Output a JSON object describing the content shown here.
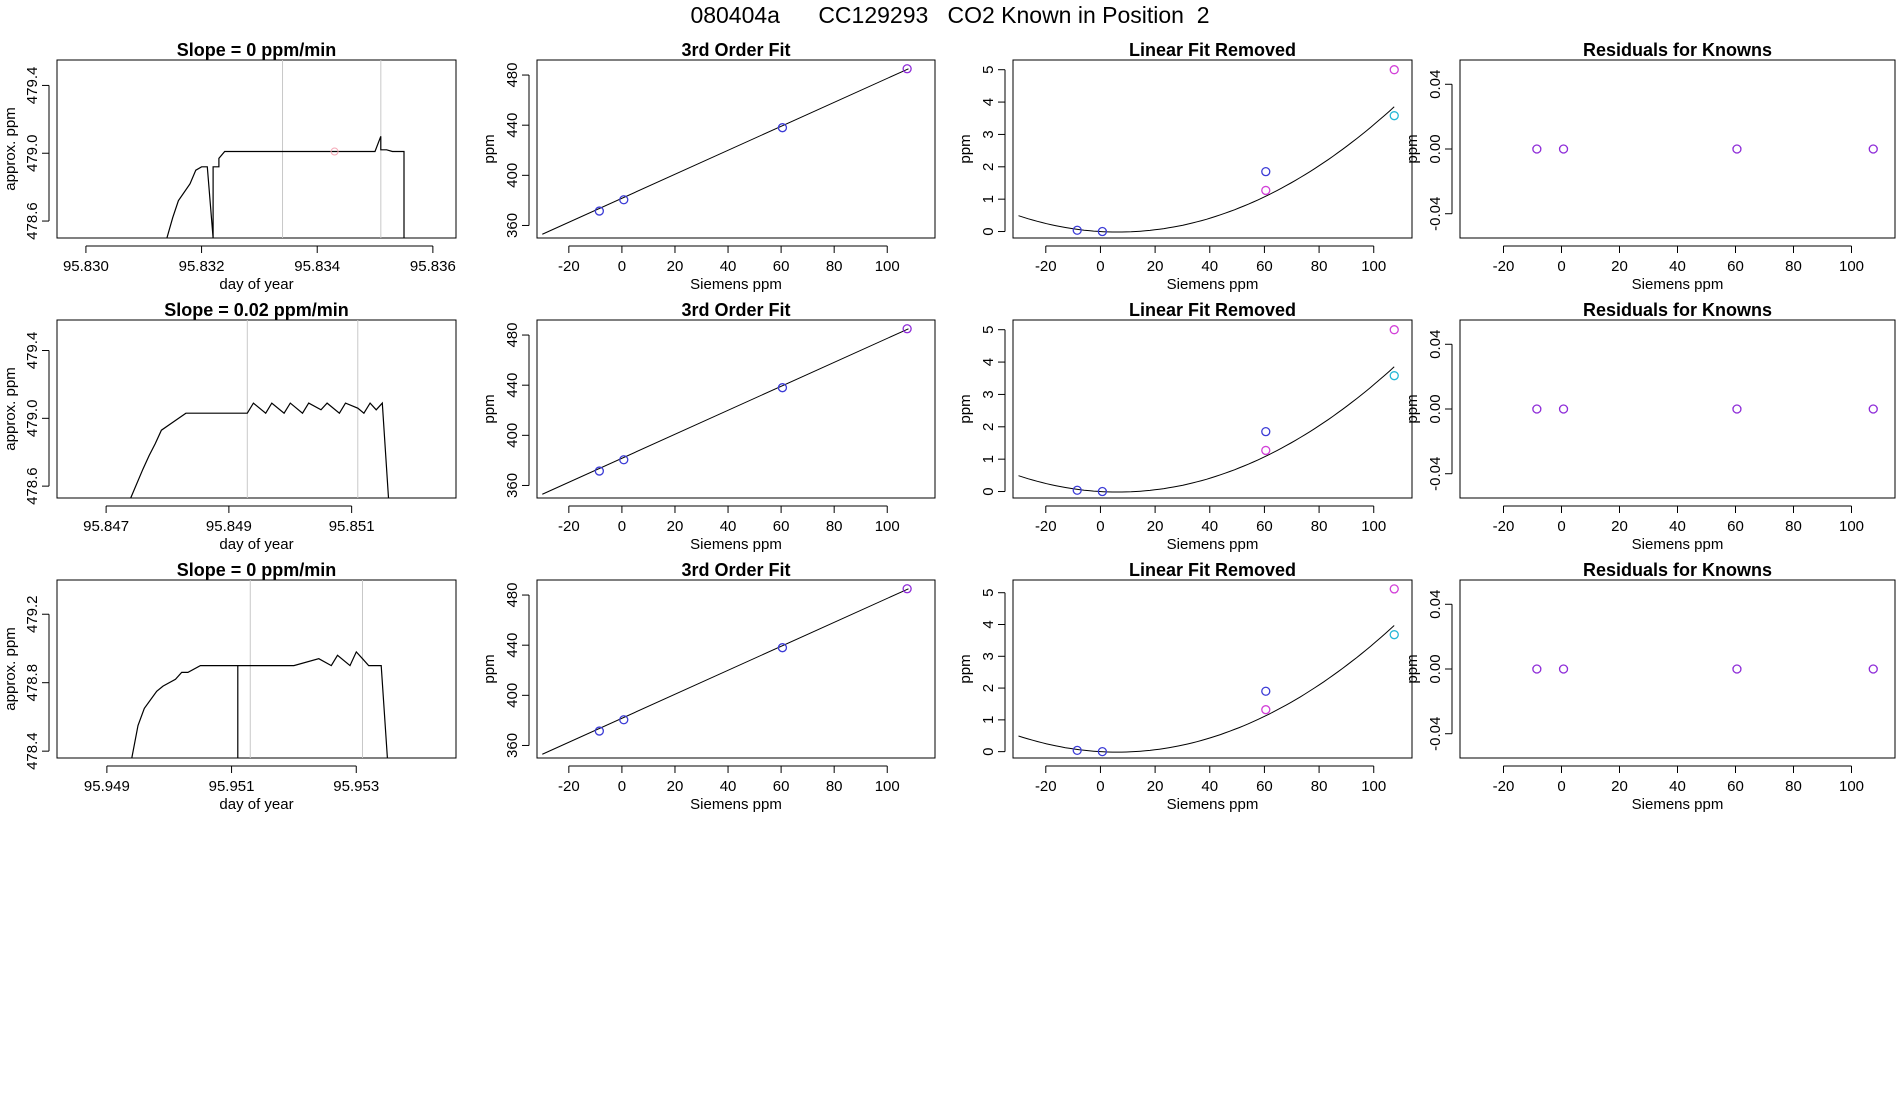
{
  "title": "080404a      CC129293   CO2 Known in Position  2",
  "colors": {
    "blue": "#3b3bd6",
    "magenta": "#d23fd8",
    "purple": "#8d2ad8",
    "cyan": "#25b7d6",
    "pink": "#f4a7b5",
    "gray": "#c8c8c8"
  },
  "chart_data": [
    {
      "type": "line",
      "panel": "timeseries",
      "row": 1,
      "title": "Slope =  0  ppm/min",
      "xlabel": "day of year",
      "ylabel": "approx. ppm",
      "xlim": [
        95.8295,
        95.8364
      ],
      "ylim": [
        478.5,
        479.55
      ],
      "xticks": [
        "95.830",
        "95.832",
        "95.834",
        "95.836"
      ],
      "xtick_values": [
        95.83,
        95.832,
        95.834,
        95.836
      ],
      "yticks": [
        "478.6",
        "479.0",
        "479.4"
      ],
      "ytick_values": [
        478.6,
        479.0,
        479.4
      ],
      "vlines": [
        95.8334,
        95.8351
      ],
      "marker": {
        "x": 95.8343,
        "y": 479.01
      },
      "x": [
        95.8314,
        95.8315,
        95.8316,
        95.8318,
        95.8319,
        95.832,
        95.8321,
        95.8322,
        95.8322,
        95.8323,
        95.8323,
        95.8323,
        95.8324,
        95.8325,
        95.8334,
        95.834,
        95.835,
        95.8351,
        95.8351,
        95.8352,
        95.8353,
        95.8354,
        95.8355,
        95.8355
      ],
      "y": [
        478.5,
        478.62,
        478.72,
        478.82,
        478.9,
        478.92,
        478.92,
        478.5,
        478.92,
        478.92,
        478.97,
        478.97,
        479.01,
        479.01,
        479.01,
        479.01,
        479.01,
        479.1,
        479.02,
        479.02,
        479.01,
        479.01,
        479.01,
        478.5
      ]
    },
    {
      "type": "scatter",
      "panel": "fit",
      "row": 1,
      "title": "3rd Order Fit",
      "xlabel": "Siemens ppm",
      "ylabel": "ppm",
      "xlim": [
        -32,
        118
      ],
      "ylim": [
        350,
        492
      ],
      "xticks": [
        "-20",
        "0",
        "20",
        "40",
        "60",
        "80",
        "100"
      ],
      "xtick_values": [
        -20,
        0,
        20,
        40,
        60,
        80,
        100
      ],
      "yticks": [
        "360",
        "400",
        "440",
        "480"
      ],
      "ytick_values": [
        360,
        400,
        440,
        480
      ],
      "line": {
        "x": [
          -30,
          108
        ],
        "y": [
          353,
          485
        ]
      },
      "points": [
        {
          "x": -8.5,
          "y": 371.5,
          "color": "blue"
        },
        {
          "x": 0.7,
          "y": 380.5,
          "color": "blue"
        },
        {
          "x": 60.5,
          "y": 438,
          "color": "blue"
        },
        {
          "x": 107.5,
          "y": 485,
          "color": "purple"
        }
      ]
    },
    {
      "type": "scatter",
      "panel": "linfit",
      "row": 1,
      "title": "Linear Fit Removed",
      "xlabel": "Siemens ppm",
      "ylabel": "ppm",
      "xlim": [
        -32,
        114
      ],
      "ylim": [
        -0.2,
        5.3
      ],
      "xticks": [
        "-20",
        "0",
        "20",
        "40",
        "60",
        "80",
        "100"
      ],
      "xtick_values": [
        -20,
        0,
        20,
        40,
        60,
        80,
        100
      ],
      "yticks": [
        "0",
        "1",
        "2",
        "3",
        "4",
        "5"
      ],
      "ytick_values": [
        0,
        1,
        2,
        3,
        4,
        5
      ],
      "curve": {
        "x0": -30,
        "x1": 107.5,
        "a": 0.000379,
        "b": -0.0049,
        "c": 0.0
      },
      "points": [
        {
          "x": -8.5,
          "y": 0.04,
          "color": "blue"
        },
        {
          "x": 0.7,
          "y": 0.0,
          "color": "blue"
        },
        {
          "x": 60.5,
          "y": 1.85,
          "color": "blue"
        },
        {
          "x": 60.5,
          "y": 1.27,
          "color": "magenta"
        },
        {
          "x": 107.5,
          "y": 5.0,
          "color": "magenta"
        },
        {
          "x": 107.5,
          "y": 3.58,
          "color": "cyan"
        }
      ]
    },
    {
      "type": "scatter",
      "panel": "resid",
      "row": 1,
      "title": "Residuals for Knowns",
      "xlabel": "Siemens ppm",
      "ylabel": "ppm",
      "xlim": [
        -35,
        115
      ],
      "ylim": [
        -0.055,
        0.055
      ],
      "xticks": [
        "-20",
        "0",
        "20",
        "40",
        "60",
        "80",
        "100"
      ],
      "xtick_values": [
        -20,
        0,
        20,
        40,
        60,
        80,
        100
      ],
      "yticks": [
        "-0.04",
        "0.00",
        "0.04"
      ],
      "ytick_values": [
        -0.04,
        0.0,
        0.04
      ],
      "points": [
        {
          "x": -8.5,
          "y": 0.0,
          "color": "purple"
        },
        {
          "x": 0.7,
          "y": 0.0,
          "color": "purple"
        },
        {
          "x": 60.5,
          "y": 0.0,
          "color": "purple"
        },
        {
          "x": 107.5,
          "y": 0.0,
          "color": "purple"
        }
      ]
    },
    {
      "type": "line",
      "panel": "timeseries",
      "row": 2,
      "title": "Slope =  0.02  ppm/min",
      "xlabel": "day of year",
      "ylabel": "approx. ppm",
      "xlim": [
        95.8462,
        95.8527
      ],
      "ylim": [
        478.53,
        479.58
      ],
      "xticks": [
        "95.847",
        "95.849",
        "95.851"
      ],
      "xtick_values": [
        95.847,
        95.849,
        95.851
      ],
      "yticks": [
        "478.6",
        "479.0",
        "479.4"
      ],
      "ytick_values": [
        478.6,
        479.0,
        479.4
      ],
      "vlines": [
        95.8493,
        95.8511
      ],
      "x": [
        95.8474,
        95.8476,
        95.8477,
        95.8478,
        95.8479,
        95.8481,
        95.8483,
        95.8493,
        95.8494,
        95.8496,
        95.8497,
        95.8499,
        95.85,
        95.8502,
        95.8503,
        95.8505,
        95.8506,
        95.8508,
        95.8509,
        95.8511,
        95.8512,
        95.8513,
        95.8514,
        95.8515,
        95.8516
      ],
      "y": [
        478.53,
        478.7,
        478.78,
        478.85,
        478.93,
        478.98,
        479.03,
        479.03,
        479.09,
        479.03,
        479.09,
        479.03,
        479.09,
        479.03,
        479.09,
        479.05,
        479.09,
        479.03,
        479.09,
        479.06,
        479.03,
        479.09,
        479.05,
        479.09,
        478.53
      ]
    },
    {
      "type": "scatter",
      "panel": "fit",
      "row": 2,
      "title": "3rd Order Fit",
      "xlabel": "Siemens ppm",
      "ylabel": "ppm",
      "xlim": [
        -32,
        118
      ],
      "ylim": [
        350,
        492
      ],
      "xticks": [
        "-20",
        "0",
        "20",
        "40",
        "60",
        "80",
        "100"
      ],
      "xtick_values": [
        -20,
        0,
        20,
        40,
        60,
        80,
        100
      ],
      "yticks": [
        "360",
        "400",
        "440",
        "480"
      ],
      "ytick_values": [
        360,
        400,
        440,
        480
      ],
      "line": {
        "x": [
          -30,
          108
        ],
        "y": [
          353,
          485
        ]
      },
      "points": [
        {
          "x": -8.5,
          "y": 371.5,
          "color": "blue"
        },
        {
          "x": 0.7,
          "y": 380.5,
          "color": "blue"
        },
        {
          "x": 60.5,
          "y": 438,
          "color": "blue"
        },
        {
          "x": 107.5,
          "y": 485,
          "color": "purple"
        }
      ]
    },
    {
      "type": "scatter",
      "panel": "linfit",
      "row": 2,
      "title": "Linear Fit Removed",
      "xlabel": "Siemens ppm",
      "ylabel": "ppm",
      "xlim": [
        -32,
        114
      ],
      "ylim": [
        -0.2,
        5.3
      ],
      "xticks": [
        "-20",
        "0",
        "20",
        "40",
        "60",
        "80",
        "100"
      ],
      "xtick_values": [
        -20,
        0,
        20,
        40,
        60,
        80,
        100
      ],
      "yticks": [
        "0",
        "1",
        "2",
        "3",
        "4",
        "5"
      ],
      "ytick_values": [
        0,
        1,
        2,
        3,
        4,
        5
      ],
      "curve": {
        "x0": -30,
        "x1": 107.5,
        "a": 0.000379,
        "b": -0.0049,
        "c": 0.0
      },
      "points": [
        {
          "x": -8.5,
          "y": 0.04,
          "color": "blue"
        },
        {
          "x": 0.7,
          "y": 0.0,
          "color": "blue"
        },
        {
          "x": 60.5,
          "y": 1.85,
          "color": "blue"
        },
        {
          "x": 60.5,
          "y": 1.27,
          "color": "magenta"
        },
        {
          "x": 107.5,
          "y": 5.0,
          "color": "magenta"
        },
        {
          "x": 107.5,
          "y": 3.58,
          "color": "cyan"
        }
      ]
    },
    {
      "type": "scatter",
      "panel": "resid",
      "row": 2,
      "title": "Residuals for Knowns",
      "xlabel": "Siemens ppm",
      "ylabel": "ppm",
      "xlim": [
        -35,
        115
      ],
      "ylim": [
        -0.055,
        0.055
      ],
      "xticks": [
        "-20",
        "0",
        "20",
        "40",
        "60",
        "80",
        "100"
      ],
      "xtick_values": [
        -20,
        0,
        20,
        40,
        60,
        80,
        100
      ],
      "yticks": [
        "-0.04",
        "0.00",
        "0.04"
      ],
      "ytick_values": [
        -0.04,
        0.0,
        0.04
      ],
      "points": [
        {
          "x": -8.5,
          "y": 0.0,
          "color": "purple"
        },
        {
          "x": 0.7,
          "y": 0.0,
          "color": "purple"
        },
        {
          "x": 60.5,
          "y": 0.0,
          "color": "purple"
        },
        {
          "x": 107.5,
          "y": 0.0,
          "color": "purple"
        }
      ]
    },
    {
      "type": "line",
      "panel": "timeseries",
      "row": 3,
      "title": "Slope =  0  ppm/min",
      "xlabel": "day of year",
      "ylabel": "approx. ppm",
      "xlim": [
        95.9482,
        95.9546
      ],
      "ylim": [
        478.36,
        479.4
      ],
      "xticks": [
        "95.949",
        "95.951",
        "95.953"
      ],
      "xtick_values": [
        95.949,
        95.951,
        95.953
      ],
      "yticks": [
        "478.4",
        "478.8",
        "479.2"
      ],
      "ytick_values": [
        478.4,
        478.8,
        479.2
      ],
      "vlines": [
        95.9513,
        95.9531
      ],
      "x": [
        95.9494,
        95.9495,
        95.9496,
        95.9498,
        95.9499,
        95.9501,
        95.9502,
        95.9503,
        95.9505,
        95.9511,
        95.9511,
        95.9511,
        95.952,
        95.9524,
        95.9526,
        95.9527,
        95.9529,
        95.953,
        95.9531,
        95.9532,
        95.9534,
        95.9535
      ],
      "y": [
        478.36,
        478.55,
        478.65,
        478.75,
        478.78,
        478.82,
        478.86,
        478.86,
        478.9,
        478.9,
        478.36,
        478.9,
        478.9,
        478.94,
        478.9,
        478.96,
        478.9,
        478.98,
        478.94,
        478.9,
        478.9,
        478.36
      ]
    },
    {
      "type": "scatter",
      "panel": "fit",
      "row": 3,
      "title": "3rd Order Fit",
      "xlabel": "Siemens ppm",
      "ylabel": "ppm",
      "xlim": [
        -32,
        118
      ],
      "ylim": [
        350,
        492
      ],
      "xticks": [
        "-20",
        "0",
        "20",
        "40",
        "60",
        "80",
        "100"
      ],
      "xtick_values": [
        -20,
        0,
        20,
        40,
        60,
        80,
        100
      ],
      "yticks": [
        "360",
        "400",
        "440",
        "480"
      ],
      "ytick_values": [
        360,
        400,
        440,
        480
      ],
      "line": {
        "x": [
          -30,
          108
        ],
        "y": [
          353,
          485
        ]
      },
      "points": [
        {
          "x": -8.5,
          "y": 371.5,
          "color": "blue"
        },
        {
          "x": 0.7,
          "y": 380.5,
          "color": "blue"
        },
        {
          "x": 60.5,
          "y": 438,
          "color": "blue"
        },
        {
          "x": 107.5,
          "y": 485,
          "color": "purple"
        }
      ]
    },
    {
      "type": "scatter",
      "panel": "linfit",
      "row": 3,
      "title": "Linear Fit Removed",
      "xlabel": "Siemens ppm",
      "ylabel": "ppm",
      "xlim": [
        -32,
        114
      ],
      "ylim": [
        -0.2,
        5.4
      ],
      "xticks": [
        "-20",
        "0",
        "20",
        "40",
        "60",
        "80",
        "100"
      ],
      "xtick_values": [
        -20,
        0,
        20,
        40,
        60,
        80,
        100
      ],
      "yticks": [
        "0",
        "1",
        "2",
        "3",
        "4",
        "5"
      ],
      "ytick_values": [
        0,
        1,
        2,
        3,
        4,
        5
      ],
      "curve": {
        "x0": -30,
        "x1": 107.5,
        "a": 0.000388,
        "b": -0.0048,
        "c": 0.0
      },
      "points": [
        {
          "x": -8.5,
          "y": 0.04,
          "color": "blue"
        },
        {
          "x": 0.7,
          "y": 0.0,
          "color": "blue"
        },
        {
          "x": 60.5,
          "y": 1.9,
          "color": "blue"
        },
        {
          "x": 60.5,
          "y": 1.32,
          "color": "magenta"
        },
        {
          "x": 107.5,
          "y": 5.12,
          "color": "magenta"
        },
        {
          "x": 107.5,
          "y": 3.68,
          "color": "cyan"
        }
      ]
    },
    {
      "type": "scatter",
      "panel": "resid",
      "row": 3,
      "title": "Residuals for Knowns",
      "xlabel": "Siemens ppm",
      "ylabel": "ppm",
      "xlim": [
        -35,
        115
      ],
      "ylim": [
        -0.055,
        0.055
      ],
      "xticks": [
        "-20",
        "0",
        "20",
        "40",
        "60",
        "80",
        "100"
      ],
      "xtick_values": [
        -20,
        0,
        20,
        40,
        60,
        80,
        100
      ],
      "yticks": [
        "-0.04",
        "0.00",
        "0.04"
      ],
      "ytick_values": [
        -0.04,
        0.0,
        0.04
      ],
      "points": [
        {
          "x": -8.5,
          "y": 0.0,
          "color": "purple"
        },
        {
          "x": 0.7,
          "y": 0.0,
          "color": "purple"
        },
        {
          "x": 60.5,
          "y": 0.0,
          "color": "purple"
        },
        {
          "x": 107.5,
          "y": 0.0,
          "color": "purple"
        }
      ]
    }
  ]
}
